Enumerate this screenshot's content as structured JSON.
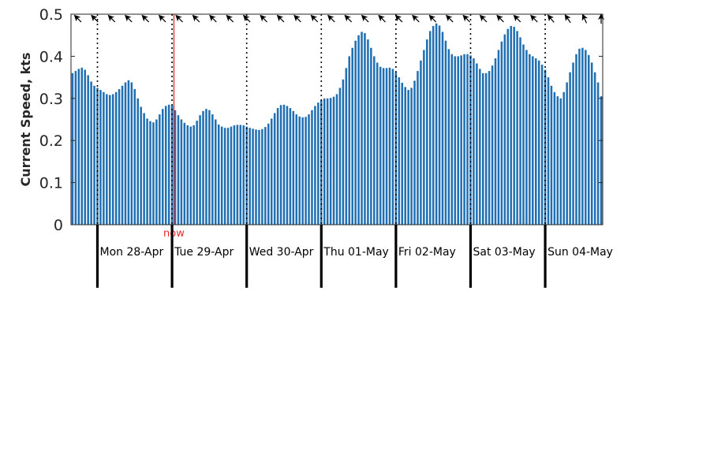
{
  "chart_data": {
    "type": "bar",
    "title": "",
    "xlabel": "",
    "ylabel": "Current Speed, kts",
    "ylim": [
      0,
      0.5
    ],
    "yticks": [
      0,
      0.1,
      0.2,
      0.3,
      0.4,
      0.5
    ],
    "ytick_labels": [
      "0",
      "0.1",
      "0.2",
      "0.3",
      "0.4",
      "0.5"
    ],
    "bar_color": "#1f6fb2",
    "now_color": "#e8292b",
    "now_label": "now",
    "now_hour": 24.6,
    "start_hour_offset": -8.5,
    "hours_per_day": 24,
    "days": [
      "Mon 28-Apr",
      "Tue 29-Apr",
      "Wed 30-Apr",
      "Thu 01-May",
      "Fri 02-May",
      "Sat 03-May",
      "Sun 04-May"
    ],
    "values": [
      0.36,
      0.365,
      0.37,
      0.373,
      0.368,
      0.355,
      0.34,
      0.33,
      0.325,
      0.32,
      0.315,
      0.31,
      0.308,
      0.31,
      0.315,
      0.322,
      0.33,
      0.338,
      0.343,
      0.338,
      0.322,
      0.3,
      0.28,
      0.265,
      0.252,
      0.246,
      0.243,
      0.25,
      0.262,
      0.275,
      0.282,
      0.285,
      0.283,
      0.272,
      0.26,
      0.25,
      0.242,
      0.236,
      0.233,
      0.236,
      0.247,
      0.26,
      0.27,
      0.275,
      0.272,
      0.262,
      0.25,
      0.238,
      0.233,
      0.23,
      0.23,
      0.233,
      0.236,
      0.237,
      0.237,
      0.236,
      0.233,
      0.23,
      0.228,
      0.226,
      0.225,
      0.227,
      0.232,
      0.24,
      0.252,
      0.265,
      0.277,
      0.284,
      0.285,
      0.282,
      0.277,
      0.27,
      0.262,
      0.257,
      0.255,
      0.256,
      0.262,
      0.272,
      0.282,
      0.29,
      0.296,
      0.3,
      0.3,
      0.301,
      0.304,
      0.31,
      0.325,
      0.345,
      0.372,
      0.4,
      0.42,
      0.437,
      0.45,
      0.458,
      0.455,
      0.44,
      0.42,
      0.4,
      0.385,
      0.375,
      0.372,
      0.372,
      0.373,
      0.37,
      0.362,
      0.35,
      0.337,
      0.327,
      0.32,
      0.325,
      0.342,
      0.365,
      0.39,
      0.415,
      0.44,
      0.46,
      0.472,
      0.478,
      0.473,
      0.458,
      0.437,
      0.417,
      0.405,
      0.4,
      0.4,
      0.402,
      0.405,
      0.405,
      0.402,
      0.395,
      0.383,
      0.37,
      0.36,
      0.36,
      0.365,
      0.378,
      0.395,
      0.415,
      0.435,
      0.452,
      0.465,
      0.472,
      0.47,
      0.46,
      0.445,
      0.428,
      0.415,
      0.405,
      0.4,
      0.395,
      0.39,
      0.38,
      0.368,
      0.35,
      0.33,
      0.315,
      0.305,
      0.3,
      0.315,
      0.338,
      0.362,
      0.385,
      0.405,
      0.418,
      0.42,
      0.415,
      0.403,
      0.385,
      0.362,
      0.338,
      0.305
    ],
    "arrow_directions_deg": [
      -45,
      -45,
      -45,
      -45,
      -45,
      -45,
      -45,
      -45,
      -45,
      -45,
      -45,
      -45,
      -45,
      -45,
      -45,
      -45,
      -45,
      -45,
      -45,
      -45,
      -45,
      -45,
      -45,
      -45,
      -45,
      -45,
      -45,
      -45,
      -40,
      -35,
      -25,
      0
    ]
  }
}
